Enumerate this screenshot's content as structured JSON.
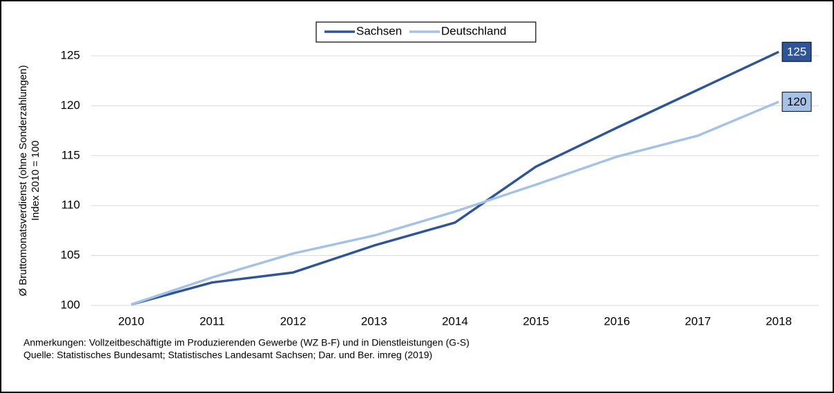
{
  "chart_data": {
    "type": "line",
    "y_label": [
      "Ø Bruttomonatsverdienst (ohne Sonderzahlungen)",
      "Index 2010 = 100"
    ],
    "categories": [
      "2010",
      "2011",
      "2012",
      "2013",
      "2014",
      "2015",
      "2016",
      "2017",
      "2018"
    ],
    "series": [
      {
        "name": "Sachsen",
        "color": "#2f5597",
        "values": [
          100.1,
          102.3,
          103.3,
          106.0,
          108.3,
          113.9,
          117.8,
          121.6,
          125.4
        ],
        "value_labels": [
          null,
          null,
          null,
          null,
          null,
          null,
          null,
          null,
          "125"
        ]
      },
      {
        "name": "Deutschland",
        "color": "#a4c2e8",
        "values": [
          100.1,
          102.8,
          105.2,
          107.0,
          109.4,
          112.1,
          114.9,
          117.0,
          120.4
        ],
        "value_labels": [
          null,
          null,
          null,
          null,
          null,
          null,
          null,
          null,
          "120"
        ]
      }
    ],
    "ylim": [
      100,
      127
    ],
    "yticks": [
      100,
      105,
      110,
      115,
      120,
      125
    ],
    "grid": true,
    "legend": "top",
    "notes": [
      "Anmerkungen:  Vollzeitbeschäftigte  im  Produzierenden  Gewerbe  (WZ  B-F)  und  in  Dienstleistungen  (G-S)",
      "Quelle:  Statistisches  Bundesamt;  Statistisches  Landesamt  Sachsen;  Dar.  und  Ber.  imreg  (2019)"
    ]
  }
}
